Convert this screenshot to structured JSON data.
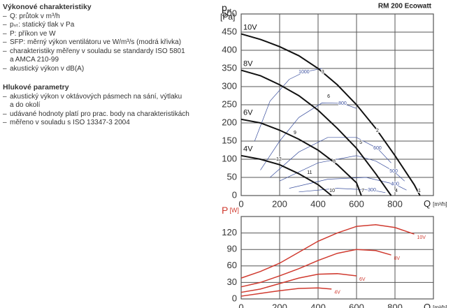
{
  "text": {
    "heading1": "Výkonové charakteristiky",
    "items1": [
      [
        "Q: průtok v m³/h"
      ],
      [
        "pₛₜ: statický tlak v Pa"
      ],
      [
        "P: příkon ve W"
      ],
      [
        "SFP: měrný výkon ventilátoru ve W/m³/s (modrá křivka)"
      ],
      [
        "charakteristiky měřeny v souladu se standardy ISO 5801",
        "a AMCA 210-99"
      ],
      [
        "akustický výkon v dB(A)"
      ]
    ],
    "heading2": "Hlukové parametry",
    "items2": [
      [
        "akustický výkon v oktávových pásmech na sání, výtlaku",
        "a do okolí"
      ],
      [
        "udávané hodnoty platí pro prac. body na charakteristikách"
      ],
      [
        "měřeno v souladu s ISO 13347-3 2004"
      ]
    ]
  },
  "chart_data": [
    {
      "type": "line",
      "title": "RM 200 Ecowatt",
      "ylabel": "p",
      "ylabel_sub": "st",
      "yunit": "[Pa]",
      "xlabel": "Q",
      "xunit": "[m³/h]",
      "xlim": [
        0,
        1000
      ],
      "xticks": [
        0,
        200,
        400,
        600,
        800
      ],
      "ylim": [
        0,
        500
      ],
      "yticks": [
        0,
        50,
        100,
        150,
        200,
        250,
        300,
        350,
        400,
        450,
        500
      ],
      "grid": true,
      "axis_label_color": "#222222",
      "series": [
        {
          "name": "10V",
          "color": "#111111",
          "x": [
            0,
            100,
            200,
            300,
            400,
            500,
            600,
            700,
            800,
            900,
            930
          ],
          "values": [
            445,
            430,
            410,
            385,
            350,
            305,
            250,
            185,
            110,
            30,
            0
          ]
        },
        {
          "name": "8V",
          "color": "#111111",
          "x": [
            0,
            100,
            200,
            300,
            400,
            500,
            600,
            700,
            780
          ],
          "values": [
            345,
            330,
            305,
            275,
            235,
            185,
            130,
            60,
            0
          ]
        },
        {
          "name": "6V",
          "color": "#111111",
          "x": [
            0,
            100,
            200,
            300,
            400,
            500,
            600,
            625
          ],
          "values": [
            210,
            200,
            180,
            155,
            125,
            85,
            35,
            0
          ]
        },
        {
          "name": "4V",
          "color": "#111111",
          "x": [
            0,
            100,
            200,
            300,
            400,
            470
          ],
          "values": [
            110,
            100,
            85,
            60,
            30,
            0
          ]
        }
      ],
      "sfp_color": "#3a4f9e",
      "sfp_curves": [
        {
          "label": "1000",
          "x": [
            70,
            150,
            250,
            327,
            420
          ],
          "values": [
            150,
            260,
            320,
            340,
            350
          ]
        },
        {
          "label": "800",
          "x": [
            100,
            200,
            300,
            420,
            527,
            600
          ],
          "values": [
            70,
            150,
            215,
            255,
            254,
            240
          ]
        },
        {
          "label": "600",
          "x": [
            150,
            300,
            450,
            600,
            709,
            780
          ],
          "values": [
            50,
            120,
            160,
            160,
            130,
            90
          ]
        },
        {
          "label": "500",
          "x": [
            200,
            400,
            600,
            700,
            793,
            850
          ],
          "values": [
            40,
            90,
            110,
            95,
            67,
            40
          ]
        },
        {
          "label": "400",
          "x": [
            250,
            450,
            650,
            800,
            860
          ],
          "values": [
            20,
            45,
            50,
            31,
            15
          ]
        },
        {
          "label": "300",
          "x": [
            300,
            500,
            680,
            750
          ],
          "values": [
            10,
            20,
            15,
            8
          ]
        }
      ],
      "points": [
        {
          "label": "1",
          "x": 927,
          "y": 13
        },
        {
          "label": "2",
          "x": 709,
          "y": 179
        },
        {
          "label": "3",
          "x": 425,
          "y": 340
        },
        {
          "label": "4",
          "x": 807,
          "y": 13
        },
        {
          "label": "5",
          "x": 622,
          "y": 146
        },
        {
          "label": "6",
          "x": 455,
          "y": 273
        },
        {
          "label": "7",
          "x": 633,
          "y": 13
        },
        {
          "label": "8",
          "x": 484,
          "y": 94
        },
        {
          "label": "9",
          "x": 280,
          "y": 173
        },
        {
          "label": "10",
          "x": 473,
          "y": 13
        },
        {
          "label": "11",
          "x": 356,
          "y": 63
        },
        {
          "label": "12",
          "x": 196,
          "y": 100
        }
      ]
    },
    {
      "type": "line",
      "ylabel": "P",
      "yunit": "[W]",
      "xlabel": "Q",
      "xunit": "[m³/h]",
      "xlim": [
        0,
        1000
      ],
      "xticks": [
        0,
        200,
        400,
        600,
        800
      ],
      "ylim": [
        0,
        150
      ],
      "yticks": [
        0,
        30,
        60,
        90,
        120
      ],
      "grid": true,
      "axis_label_color": "#d03a2f",
      "series": [
        {
          "name": "10V",
          "color": "#d03a2f",
          "x": [
            0,
            100,
            200,
            300,
            400,
            500,
            600,
            700,
            800,
            900
          ],
          "values": [
            38,
            50,
            65,
            85,
            105,
            120,
            132,
            135,
            130,
            118
          ]
        },
        {
          "name": "8V",
          "color": "#d03a2f",
          "x": [
            0,
            100,
            200,
            300,
            400,
            500,
            600,
            700,
            780
          ],
          "values": [
            22,
            30,
            42,
            55,
            70,
            83,
            90,
            88,
            80
          ]
        },
        {
          "name": "6V",
          "color": "#d03a2f",
          "x": [
            0,
            100,
            200,
            300,
            400,
            500,
            600
          ],
          "values": [
            12,
            18,
            28,
            38,
            45,
            46,
            42
          ]
        },
        {
          "name": "4V",
          "color": "#d03a2f",
          "x": [
            0,
            100,
            200,
            300,
            400,
            470
          ],
          "values": [
            5,
            10,
            15,
            19,
            20,
            18
          ]
        }
      ]
    }
  ]
}
